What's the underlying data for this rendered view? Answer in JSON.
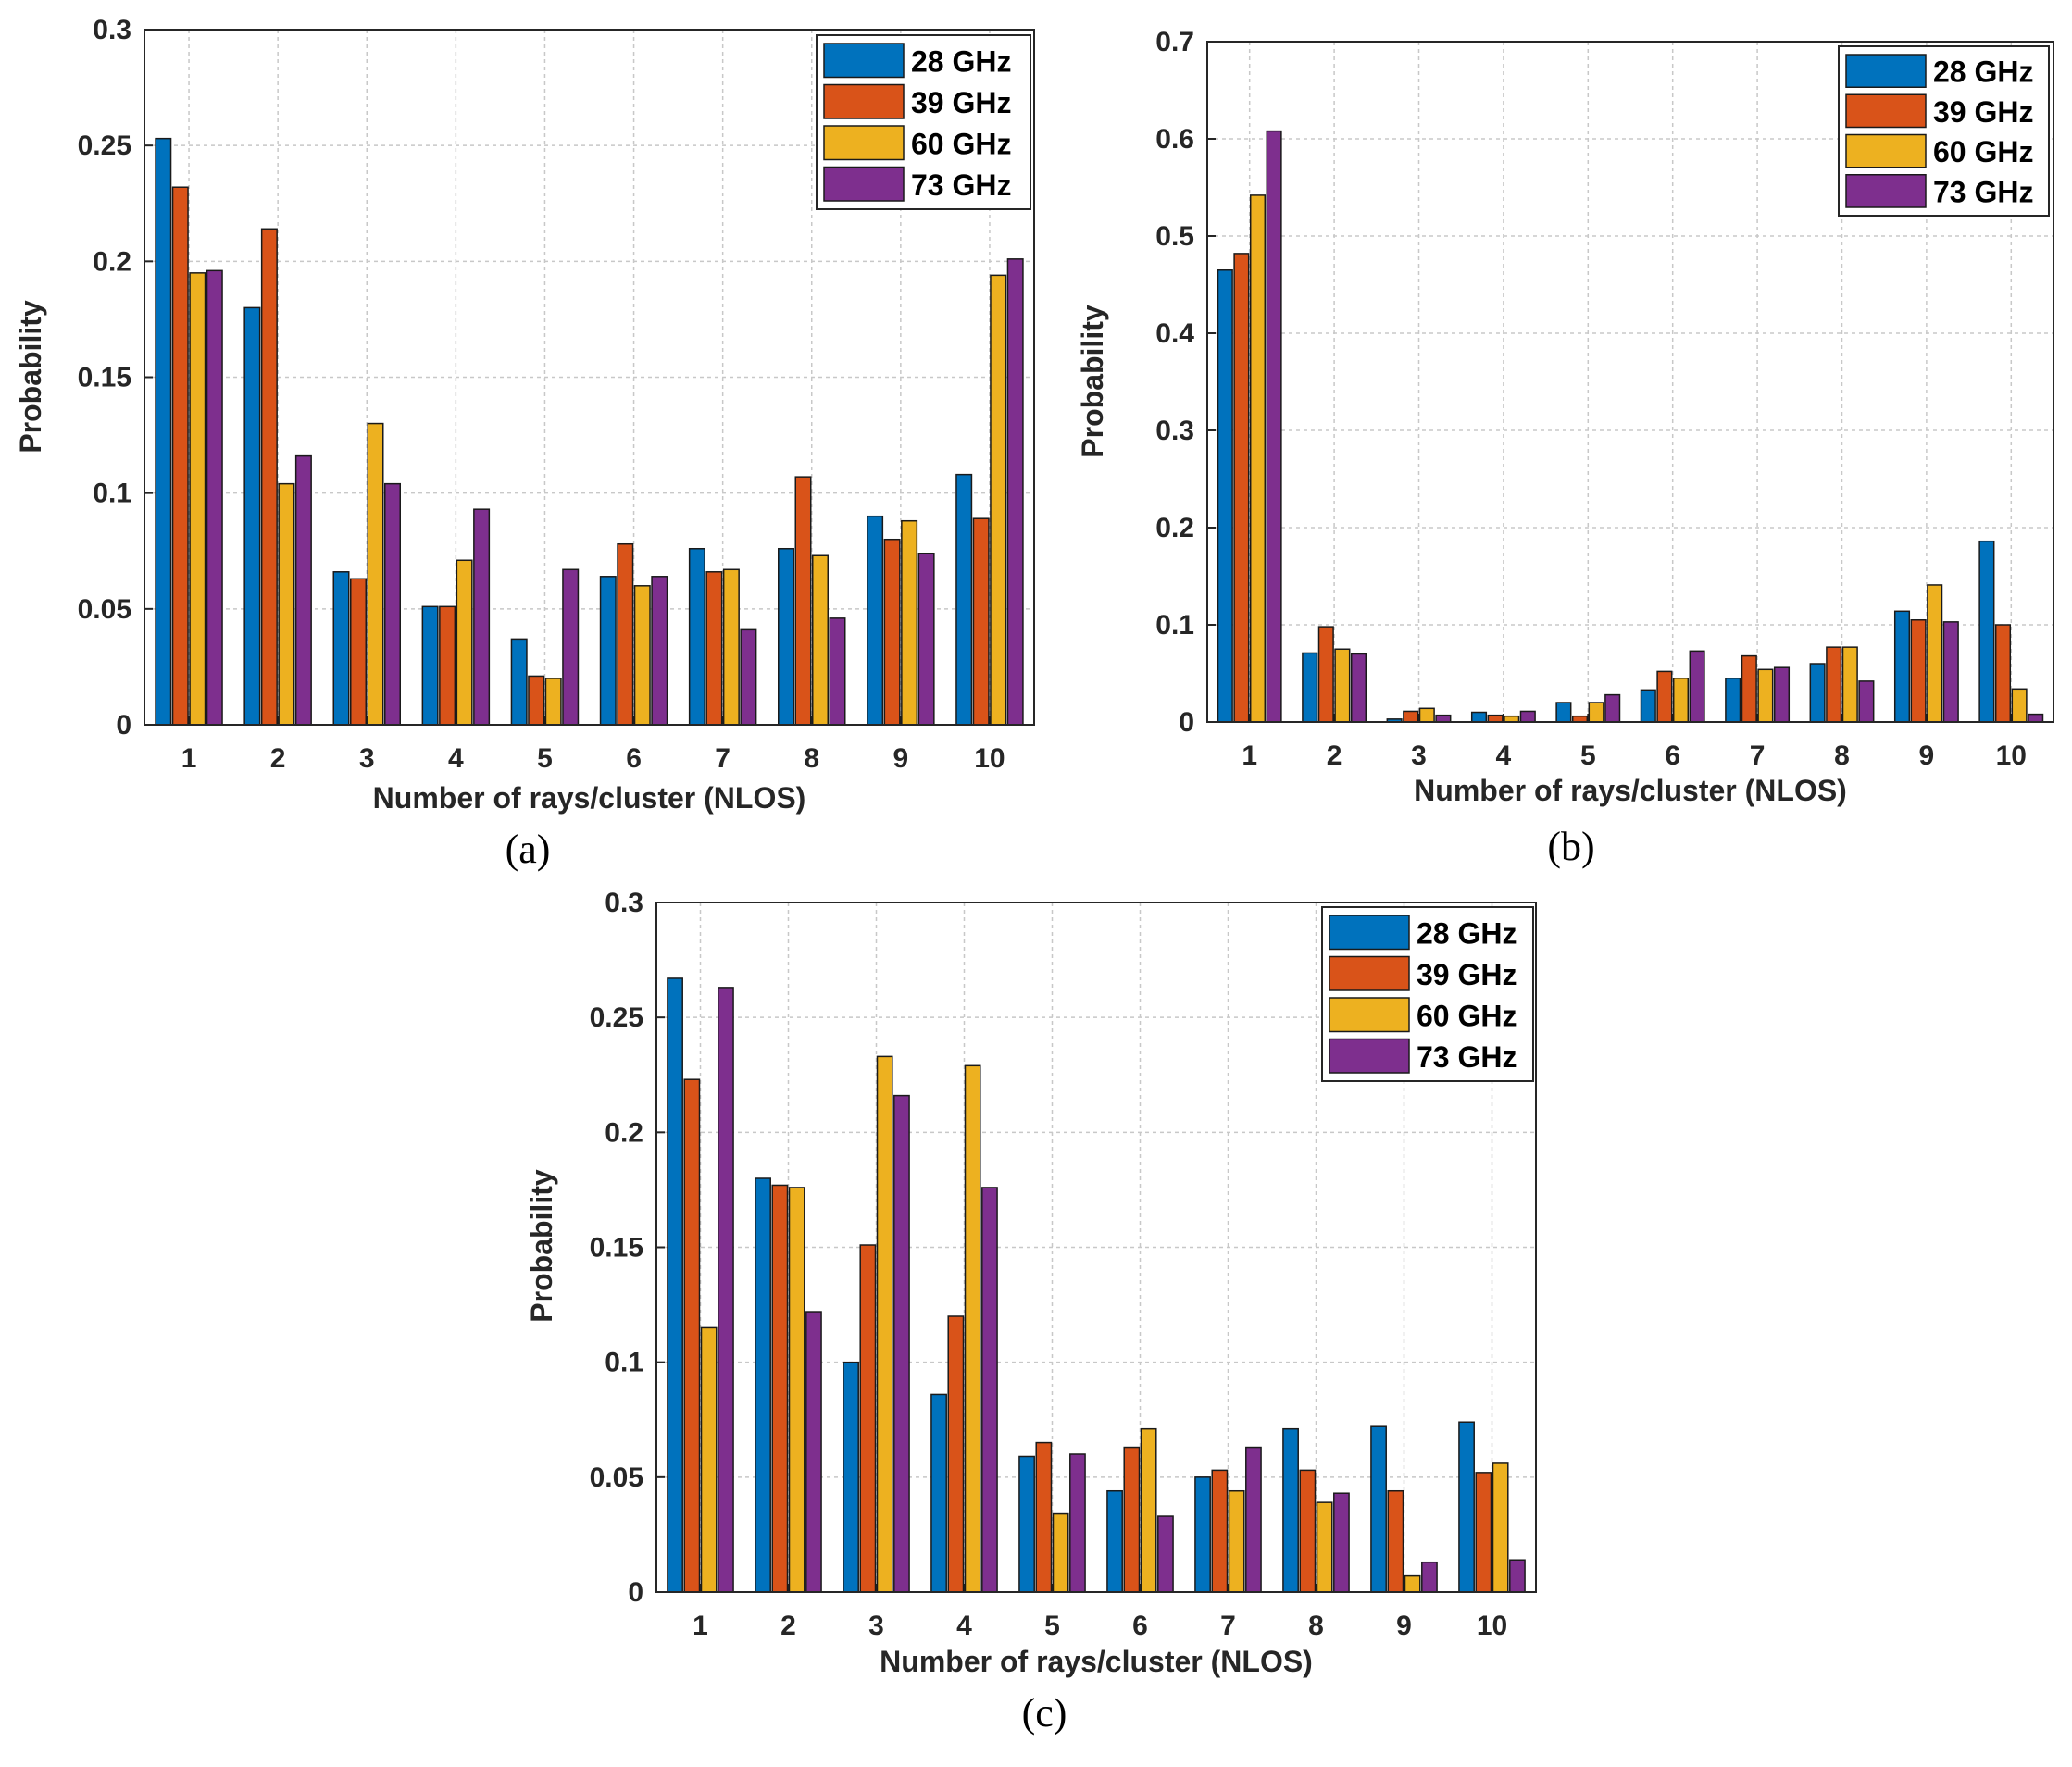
{
  "colors": {
    "28 GHz": "#0072BD",
    "39 GHz": "#D95319",
    "60 GHz": "#EDB120",
    "73 GHz": "#7E2F8E"
  },
  "chart_data": [
    {
      "type": "bar",
      "panel": "(a)",
      "categories": [
        "1",
        "2",
        "3",
        "4",
        "5",
        "6",
        "7",
        "8",
        "9",
        "10"
      ],
      "series": [
        {
          "name": "28 GHz",
          "values": [
            0.253,
            0.18,
            0.066,
            0.051,
            0.037,
            0.064,
            0.076,
            0.076,
            0.09,
            0.108
          ]
        },
        {
          "name": "39 GHz",
          "values": [
            0.232,
            0.214,
            0.063,
            0.051,
            0.021,
            0.078,
            0.066,
            0.107,
            0.08,
            0.089
          ]
        },
        {
          "name": "60 GHz",
          "values": [
            0.195,
            0.104,
            0.13,
            0.071,
            0.02,
            0.06,
            0.067,
            0.073,
            0.088,
            0.194
          ]
        },
        {
          "name": "73 GHz",
          "values": [
            0.196,
            0.116,
            0.104,
            0.093,
            0.067,
            0.064,
            0.041,
            0.046,
            0.074,
            0.201
          ]
        }
      ],
      "xlabel": "Number of rays/cluster (NLOS)",
      "ylabel": "Probability",
      "ylim": [
        0,
        0.3
      ],
      "yticks": [
        "0",
        "0.05",
        "0.1",
        "0.15",
        "0.2",
        "0.25",
        "0.3"
      ],
      "legend": "top-right",
      "grid": true
    },
    {
      "type": "bar",
      "panel": "(b)",
      "categories": [
        "1",
        "2",
        "3",
        "4",
        "5",
        "6",
        "7",
        "8",
        "9",
        "10"
      ],
      "series": [
        {
          "name": "28 GHz",
          "values": [
            0.465,
            0.071,
            0.003,
            0.01,
            0.02,
            0.033,
            0.045,
            0.06,
            0.114,
            0.186
          ]
        },
        {
          "name": "39 GHz",
          "values": [
            0.482,
            0.098,
            0.011,
            0.007,
            0.006,
            0.052,
            0.068,
            0.077,
            0.105,
            0.1
          ]
        },
        {
          "name": "60 GHz",
          "values": [
            0.542,
            0.075,
            0.014,
            0.006,
            0.02,
            0.045,
            0.054,
            0.077,
            0.141,
            0.034
          ]
        },
        {
          "name": "73 GHz",
          "values": [
            0.608,
            0.07,
            0.007,
            0.011,
            0.028,
            0.073,
            0.056,
            0.042,
            0.103,
            0.008
          ]
        }
      ],
      "xlabel": "Number of rays/cluster (NLOS)",
      "ylabel": "Probability",
      "ylim": [
        0,
        0.7
      ],
      "yticks": [
        "0",
        "0.1",
        "0.2",
        "0.3",
        "0.4",
        "0.5",
        "0.6",
        "0.7"
      ],
      "legend": "top-right",
      "grid": true
    },
    {
      "type": "bar",
      "panel": "(c)",
      "categories": [
        "1",
        "2",
        "3",
        "4",
        "5",
        "6",
        "7",
        "8",
        "9",
        "10"
      ],
      "series": [
        {
          "name": "28 GHz",
          "values": [
            0.267,
            0.18,
            0.1,
            0.086,
            0.059,
            0.044,
            0.05,
            0.071,
            0.072,
            0.074
          ]
        },
        {
          "name": "39 GHz",
          "values": [
            0.223,
            0.177,
            0.151,
            0.12,
            0.065,
            0.063,
            0.053,
            0.053,
            0.044,
            0.052
          ]
        },
        {
          "name": "60 GHz",
          "values": [
            0.115,
            0.176,
            0.233,
            0.229,
            0.034,
            0.071,
            0.044,
            0.039,
            0.007,
            0.056
          ]
        },
        {
          "name": "73 GHz",
          "values": [
            0.263,
            0.122,
            0.216,
            0.176,
            0.06,
            0.033,
            0.063,
            0.043,
            0.013,
            0.014
          ]
        }
      ],
      "xlabel": "Number of rays/cluster (NLOS)",
      "ylabel": "Probability",
      "ylim": [
        0,
        0.3
      ],
      "yticks": [
        "0",
        "0.05",
        "0.1",
        "0.15",
        "0.2",
        "0.25",
        "0.3"
      ],
      "legend": "top-right",
      "grid": true
    }
  ]
}
